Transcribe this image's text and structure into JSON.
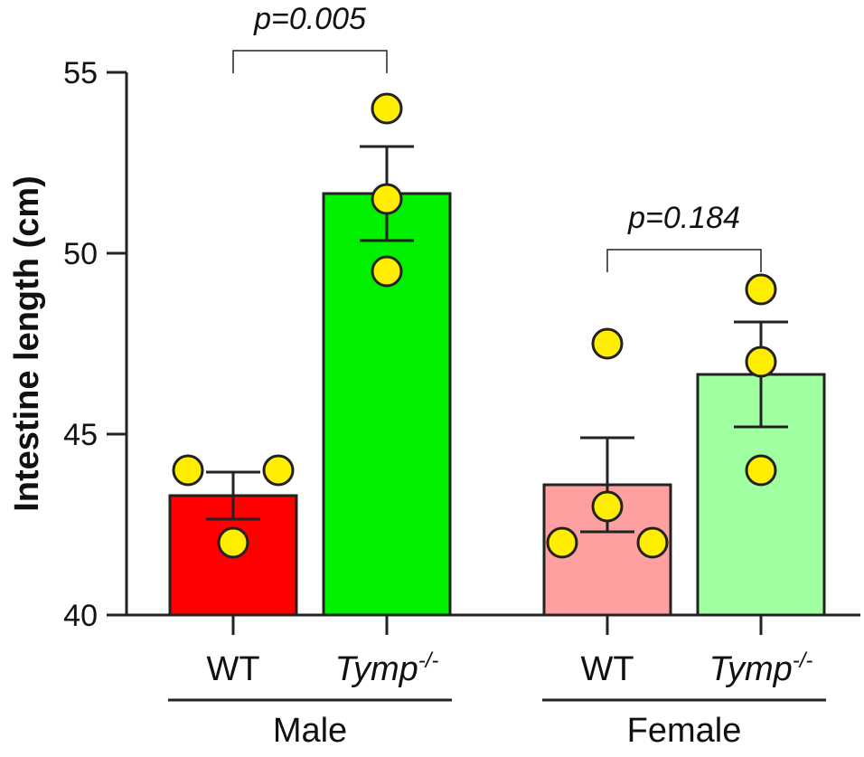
{
  "chart_data": {
    "type": "bar",
    "title": "",
    "xlabel": "",
    "ylabel": "Intestine length (cm)",
    "ylim": [
      40,
      55
    ],
    "yticks": [
      40,
      45,
      50,
      55
    ],
    "ytick_labels": [
      "40",
      "45",
      "50",
      "55"
    ],
    "groups": [
      {
        "name": "Male",
        "bar_indices": [
          0,
          1
        ]
      },
      {
        "name": "Female",
        "bar_indices": [
          2,
          3
        ]
      }
    ],
    "bars": [
      {
        "category": "WT",
        "sup": "",
        "italic": false,
        "group": "Male",
        "mean": 43.3,
        "sem": 0.65,
        "color": "#ff0000",
        "points": [
          44.0,
          44.0,
          42.0
        ]
      },
      {
        "category": "Tymp",
        "sup": "-/-",
        "italic": true,
        "group": "Male",
        "mean": 51.65,
        "sem": 1.3,
        "color": "#00f000",
        "points": [
          54.0,
          51.5,
          49.5
        ]
      },
      {
        "category": "WT",
        "sup": "",
        "italic": false,
        "group": "Female",
        "mean": 43.6,
        "sem": 1.3,
        "color": "#ffa0a0",
        "points": [
          47.5,
          43.0,
          42.0,
          42.0
        ]
      },
      {
        "category": "Tymp",
        "sup": "-/-",
        "italic": true,
        "group": "Female",
        "mean": 46.65,
        "sem": 1.45,
        "color": "#a0ffa0",
        "points": [
          49.0,
          47.0,
          44.0
        ]
      }
    ],
    "comparisons": [
      {
        "label": "p=0.005",
        "from": 0,
        "to": 1,
        "level": 55.6
      },
      {
        "label": "p=0.184",
        "from": 2,
        "to": 3,
        "level": 50.1
      }
    ],
    "point_color": "#ffee00",
    "axis_color": "#222222"
  }
}
